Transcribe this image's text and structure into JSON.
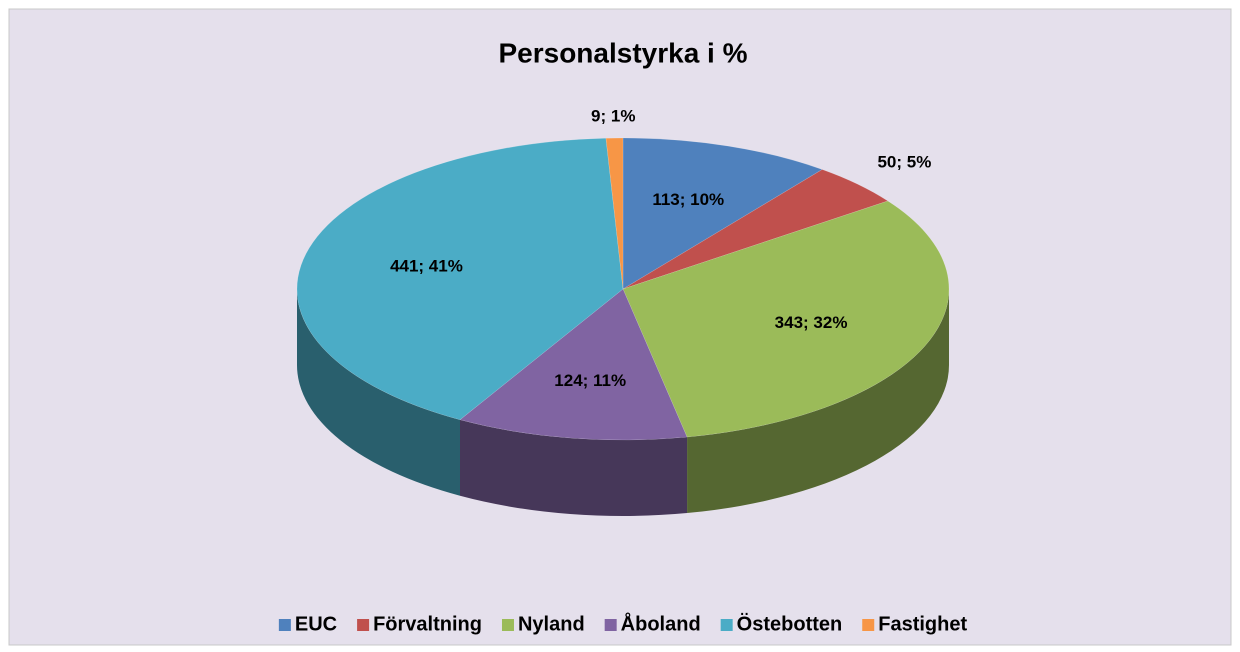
{
  "chart_data": {
    "type": "pie",
    "title": "Personalstyrka i %",
    "categories": [
      "EUC",
      "Förvaltning",
      "Nyland",
      "Åboland",
      "Östebotten",
      "Fastighet"
    ],
    "values": [
      113,
      50,
      343,
      124,
      441,
      9
    ],
    "value_labels": [
      "113; 10%",
      "50; 5%",
      "343; 32%",
      "124; 11%",
      "441; 41%",
      "9; 1%"
    ],
    "colors": [
      "#4f81bd",
      "#c0504d",
      "#9bbb59",
      "#8064a2",
      "#4bacc6",
      "#f79646"
    ],
    "legend": "bottom"
  }
}
